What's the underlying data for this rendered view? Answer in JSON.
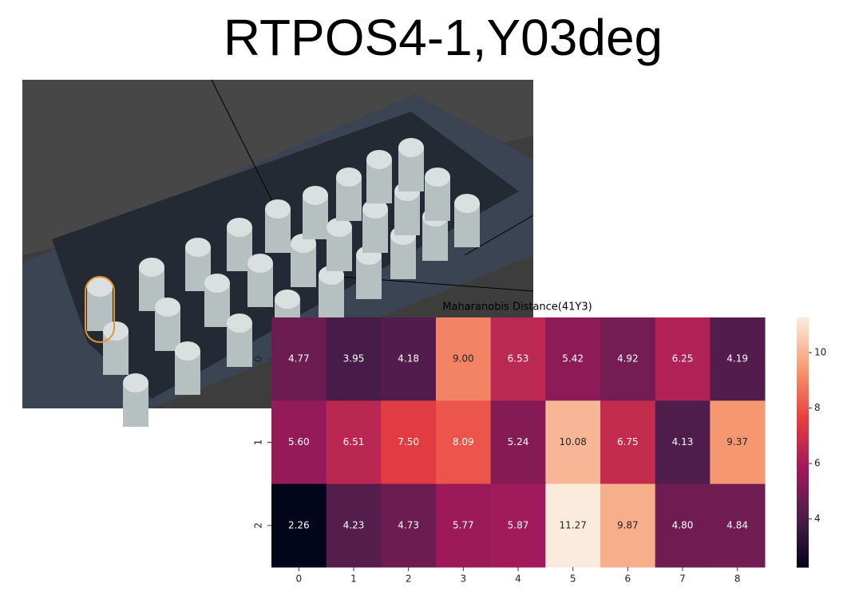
{
  "header": {
    "title": "RTPOS4-1,Y03deg"
  },
  "chart_data": {
    "type": "heatmap",
    "title": "Maharanobis Distance(41Y3)",
    "x": [
      "0",
      "1",
      "2",
      "3",
      "4",
      "5",
      "6",
      "7",
      "8"
    ],
    "y": [
      "0",
      "1",
      "2"
    ],
    "values": [
      [
        4.77,
        3.95,
        4.18,
        9.0,
        6.53,
        5.42,
        4.92,
        6.25,
        4.19
      ],
      [
        5.6,
        6.51,
        7.5,
        8.09,
        5.24,
        10.08,
        6.75,
        4.13,
        9.37
      ],
      [
        2.26,
        4.23,
        4.73,
        5.77,
        5.87,
        11.27,
        9.87,
        4.8,
        4.84
      ]
    ],
    "value_labels": [
      [
        "4.77",
        "3.95",
        "4.18",
        "9.00",
        "6.53",
        "5.42",
        "4.92",
        "6.25",
        "4.19"
      ],
      [
        "5.60",
        "6.51",
        "7.50",
        "8.09",
        "5.24",
        "10.08",
        "6.75",
        "4.13",
        "9.37"
      ],
      [
        "2.26",
        "4.23",
        "4.73",
        "5.77",
        "5.87",
        "11.27",
        "9.87",
        "4.80",
        "4.84"
      ]
    ],
    "clim": [
      2.26,
      11.27
    ],
    "cticks": [
      4,
      6,
      8,
      10
    ],
    "colormap": [
      "#03051a",
      "#4c1d4b",
      "#a11a5b",
      "#e83f3f",
      "#f69c73",
      "#faebdd"
    ]
  }
}
